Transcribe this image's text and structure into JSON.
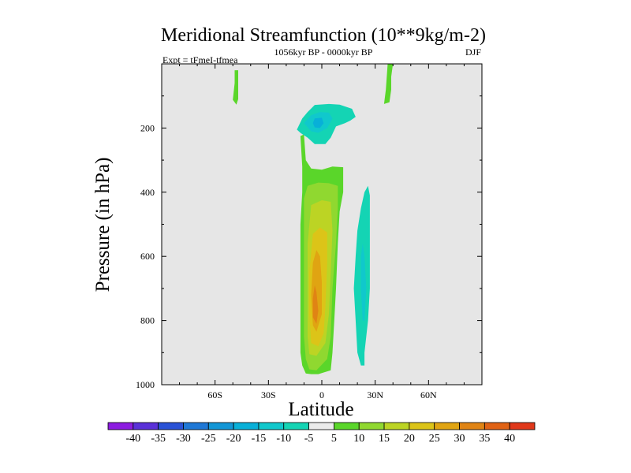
{
  "chart_data": {
    "type": "contour",
    "title": "Meridional Streamfunction (10**9kg/m-2)",
    "subtitle_left": "Expt = tFmeI-tfmea",
    "subtitle_center": "1056kyr BP - 0000kyr BP",
    "subtitle_right": "DJF",
    "xlabel": "Latitude",
    "ylabel": "Pressure (in hPa)",
    "xlim": [
      -90,
      90
    ],
    "ylim": [
      0,
      1000
    ],
    "y_inverted": true,
    "x_ticks": [
      {
        "value": -60,
        "label": "60S"
      },
      {
        "value": -30,
        "label": "30S"
      },
      {
        "value": 0,
        "label": "0"
      },
      {
        "value": 30,
        "label": "30N"
      },
      {
        "value": 60,
        "label": "60N"
      }
    ],
    "y_ticks": [
      {
        "value": 200,
        "label": "200"
      },
      {
        "value": 400,
        "label": "400"
      },
      {
        "value": 600,
        "label": "600"
      },
      {
        "value": 800,
        "label": "800"
      },
      {
        "value": 1000,
        "label": "1000"
      }
    ],
    "colorbar": {
      "levels": [
        "-40",
        "-35",
        "-30",
        "-25",
        "-20",
        "-15",
        "-10",
        "-5",
        "5",
        "10",
        "15",
        "20",
        "25",
        "30",
        "35",
        "40"
      ],
      "colors": [
        "#8c1ce0",
        "#5a31d8",
        "#2a52d6",
        "#1f78d6",
        "#1296d6",
        "#08b0d8",
        "#10c8cc",
        "#14d4b4",
        "#ebebeb",
        "#5ad62a",
        "#90d830",
        "#bcd424",
        "#dcc418",
        "#e0a412",
        "#e08414",
        "#e06214",
        "#e0381a"
      ]
    },
    "contours": [
      {
        "level": 5,
        "points": [
          [
            -2,
            967
          ],
          [
            -6,
            967
          ],
          [
            -9,
            965
          ],
          [
            -11,
            940
          ],
          [
            -12,
            900
          ],
          [
            -12,
            800
          ],
          [
            -12,
            700
          ],
          [
            -12,
            600
          ],
          [
            -12,
            500
          ],
          [
            -11,
            400
          ],
          [
            -11,
            320
          ],
          [
            -12,
            225
          ],
          [
            -10,
            220
          ],
          [
            -9,
            300
          ],
          [
            -6,
            326
          ],
          [
            0,
            330
          ],
          [
            6,
            320
          ],
          [
            12,
            322
          ],
          [
            12,
            400
          ],
          [
            10,
            460
          ],
          [
            9,
            560
          ],
          [
            8,
            700
          ],
          [
            7,
            800
          ],
          [
            6,
            900
          ],
          [
            5,
            955
          ]
        ]
      },
      {
        "level": 5,
        "points": [
          [
            -49,
            20
          ],
          [
            -47,
            20
          ],
          [
            -47,
            110
          ],
          [
            -48,
            127
          ],
          [
            -50,
            112
          ],
          [
            -49,
            60
          ]
        ]
      },
      {
        "level": 5,
        "points": [
          [
            37,
            0
          ],
          [
            40,
            0
          ],
          [
            39,
            40
          ],
          [
            39,
            80
          ],
          [
            38,
            120
          ],
          [
            35,
            125
          ],
          [
            36,
            80
          ]
        ]
      },
      {
        "level": 10,
        "points": [
          [
            -3,
            955
          ],
          [
            -7,
            952
          ],
          [
            -9,
            920
          ],
          [
            -10,
            850
          ],
          [
            -10,
            700
          ],
          [
            -10,
            550
          ],
          [
            -10,
            420
          ],
          [
            -8,
            380
          ],
          [
            -2,
            370
          ],
          [
            4,
            372
          ],
          [
            9,
            380
          ],
          [
            9,
            450
          ],
          [
            8,
            560
          ],
          [
            6,
            700
          ],
          [
            5,
            850
          ],
          [
            3,
            920
          ]
        ]
      },
      {
        "level": 15,
        "points": [
          [
            -3,
            910
          ],
          [
            -7,
            905
          ],
          [
            -8,
            850
          ],
          [
            -8,
            700
          ],
          [
            -8,
            560
          ],
          [
            -6,
            440
          ],
          [
            0,
            425
          ],
          [
            5,
            430
          ],
          [
            6,
            520
          ],
          [
            5,
            650
          ],
          [
            4,
            780
          ],
          [
            2,
            870
          ]
        ]
      },
      {
        "level": 20,
        "points": [
          [
            -2,
            880
          ],
          [
            -6,
            870
          ],
          [
            -7,
            780
          ],
          [
            -7,
            650
          ],
          [
            -5,
            530
          ],
          [
            -1,
            510
          ],
          [
            3,
            525
          ],
          [
            3,
            620
          ],
          [
            2,
            760
          ],
          [
            1,
            840
          ]
        ]
      },
      {
        "level": 25,
        "points": [
          [
            -3,
            835
          ],
          [
            -5,
            815
          ],
          [
            -6,
            720
          ],
          [
            -5,
            620
          ],
          [
            -3,
            580
          ],
          [
            -1,
            600
          ],
          [
            0,
            680
          ],
          [
            0,
            780
          ]
        ]
      },
      {
        "level": 30,
        "points": [
          [
            -3,
            810
          ],
          [
            -5,
            790
          ],
          [
            -5,
            730
          ],
          [
            -4,
            690
          ],
          [
            -3,
            710
          ],
          [
            -2,
            770
          ]
        ]
      },
      {
        "level": -5,
        "points": [
          [
            -14,
            205
          ],
          [
            -11,
            170
          ],
          [
            -8,
            150
          ],
          [
            -4,
            128
          ],
          [
            4,
            125
          ],
          [
            10,
            127
          ],
          [
            17,
            140
          ],
          [
            19,
            165
          ],
          [
            16,
            177
          ],
          [
            13,
            185
          ],
          [
            8,
            195
          ],
          [
            5,
            230
          ],
          [
            2,
            250
          ],
          [
            -4,
            250
          ],
          [
            -8,
            230
          ],
          [
            -12,
            215
          ]
        ]
      },
      {
        "level": -5,
        "points": [
          [
            22,
            940
          ],
          [
            20,
            900
          ],
          [
            19,
            800
          ],
          [
            18,
            700
          ],
          [
            19,
            600
          ],
          [
            20,
            520
          ],
          [
            22,
            450
          ],
          [
            24,
            400
          ],
          [
            26,
            380
          ],
          [
            27,
            410
          ],
          [
            27,
            500
          ],
          [
            27,
            600
          ],
          [
            27,
            700
          ],
          [
            26,
            800
          ],
          [
            24,
            900
          ],
          [
            24,
            940
          ]
        ]
      },
      {
        "level": -10,
        "points": [
          [
            -10,
            185
          ],
          [
            -6,
            160
          ],
          [
            -1,
            150
          ],
          [
            4,
            152
          ],
          [
            6,
            170
          ],
          [
            3,
            200
          ],
          [
            -2,
            215
          ],
          [
            -6,
            210
          ]
        ]
      },
      {
        "level": -15,
        "points": [
          [
            -5,
            185
          ],
          [
            -4,
            170
          ],
          [
            0,
            168
          ],
          [
            1,
            185
          ],
          [
            -1,
            200
          ],
          [
            -4,
            198
          ]
        ]
      },
      {
        "level": -10,
        "points": [
          [
            23,
            800
          ],
          [
            22,
            700
          ],
          [
            22,
            600
          ],
          [
            23,
            560
          ],
          [
            24,
            600
          ],
          [
            25,
            700
          ],
          [
            24,
            800
          ]
        ]
      }
    ]
  }
}
